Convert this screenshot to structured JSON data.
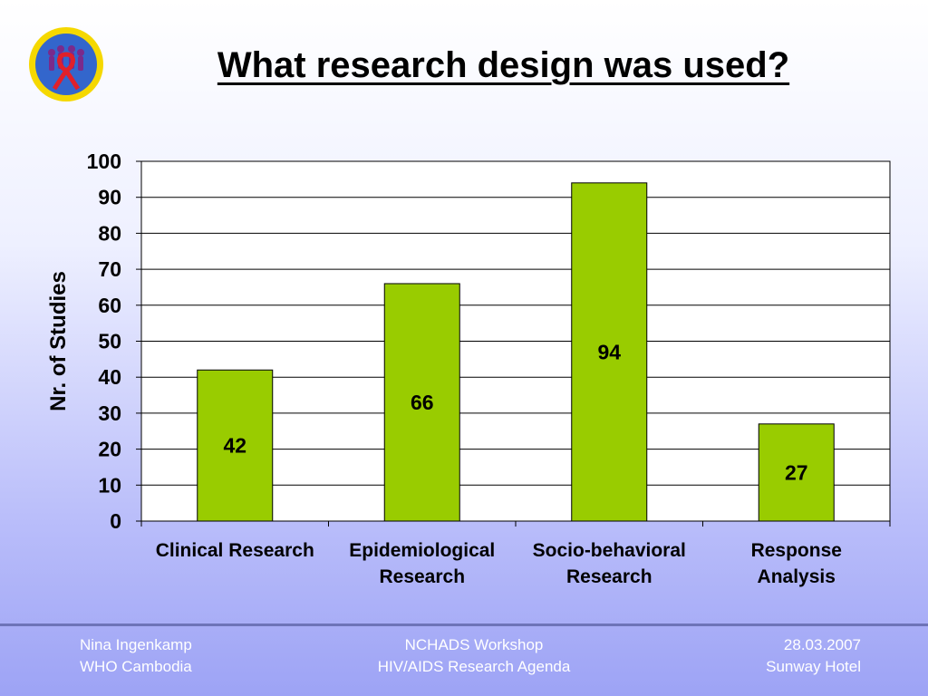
{
  "slide": {
    "title": "What research design was used?"
  },
  "logo": {
    "icon": "organization-logo-emblem"
  },
  "chart_data": {
    "type": "bar",
    "title": "",
    "xlabel": "",
    "ylabel": "Nr. of Studies",
    "ylim": [
      0,
      100
    ],
    "yticks": [
      "0",
      "10",
      "20",
      "30",
      "40",
      "50",
      "60",
      "70",
      "80",
      "90",
      "100"
    ],
    "categories": [
      [
        "Clinical Research"
      ],
      [
        "Epidemiological",
        "Research"
      ],
      [
        "Socio-behavioral",
        "Research"
      ],
      [
        "Response",
        "Analysis"
      ]
    ],
    "values": [
      42,
      66,
      94,
      27
    ],
    "data_labels": [
      "42",
      "66",
      "94",
      "27"
    ],
    "grid": true,
    "legend": "none",
    "bar_color": "#99cc00"
  },
  "footer": {
    "left": [
      "Nina Ingenkamp",
      "WHO Cambodia"
    ],
    "center": [
      "NCHADS Workshop",
      "HIV/AIDS Research Agenda"
    ],
    "right": [
      "28.03.2007",
      "Sunway Hotel"
    ]
  }
}
